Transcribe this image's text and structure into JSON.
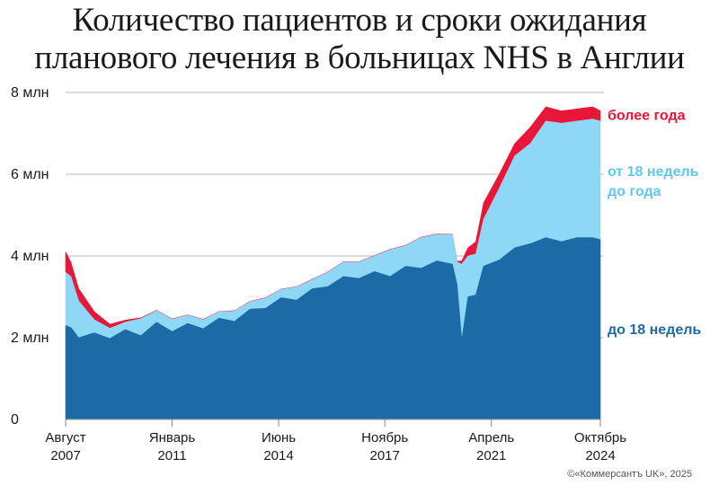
{
  "title_line1": "Количество пациентов и сроки ожидания",
  "title_line2": "планового лечения в больницах NHS в Англии",
  "credit": "©«Коммерсантъ UK», 2025",
  "chart_data": {
    "type": "area",
    "stacked": true,
    "ylim": [
      0,
      8
    ],
    "yticks": [
      {
        "value": 0,
        "label": "0"
      },
      {
        "value": 2,
        "label": "2 млн"
      },
      {
        "value": 4,
        "label": "4 млн"
      },
      {
        "value": 6,
        "label": "6 млн"
      },
      {
        "value": 8,
        "label": "8 млн"
      }
    ],
    "xlim": [
      2007.58,
      2024.75
    ],
    "xticks": [
      {
        "value": 2007.58,
        "line1": "Август",
        "line2": "2007"
      },
      {
        "value": 2011.0,
        "line1": "Январь",
        "line2": "2011"
      },
      {
        "value": 2014.42,
        "line1": "Июнь",
        "line2": "2014"
      },
      {
        "value": 2017.83,
        "line1": "Ноябрь",
        "line2": "2017"
      },
      {
        "value": 2021.25,
        "line1": "Апрель",
        "line2": "2021"
      },
      {
        "value": 2024.75,
        "line1": "Октябрь",
        "line2": "2024"
      }
    ],
    "grid": true,
    "legend": "right, inline labels",
    "series": [
      {
        "name": "до 18 недель",
        "color": "#1c6aa6",
        "label_lines": [
          "до 18 недель"
        ],
        "points": [
          [
            2007.58,
            2.3
          ],
          [
            2007.75,
            2.25
          ],
          [
            2008.0,
            2.0
          ],
          [
            2008.5,
            2.12
          ],
          [
            2009.0,
            1.98
          ],
          [
            2009.5,
            2.2
          ],
          [
            2010.0,
            2.05
          ],
          [
            2010.5,
            2.38
          ],
          [
            2011.0,
            2.15
          ],
          [
            2011.5,
            2.35
          ],
          [
            2012.0,
            2.22
          ],
          [
            2012.5,
            2.48
          ],
          [
            2013.0,
            2.4
          ],
          [
            2013.5,
            2.7
          ],
          [
            2014.0,
            2.72
          ],
          [
            2014.5,
            2.98
          ],
          [
            2015.0,
            2.92
          ],
          [
            2015.5,
            3.2
          ],
          [
            2016.0,
            3.25
          ],
          [
            2016.5,
            3.5
          ],
          [
            2017.0,
            3.45
          ],
          [
            2017.5,
            3.62
          ],
          [
            2018.0,
            3.5
          ],
          [
            2018.5,
            3.75
          ],
          [
            2019.0,
            3.7
          ],
          [
            2019.5,
            3.88
          ],
          [
            2020.0,
            3.8
          ],
          [
            2020.15,
            3.3
          ],
          [
            2020.3,
            1.95
          ],
          [
            2020.5,
            3.0
          ],
          [
            2020.75,
            3.05
          ],
          [
            2021.0,
            3.75
          ],
          [
            2021.5,
            3.9
          ],
          [
            2022.0,
            4.2
          ],
          [
            2022.5,
            4.3
          ],
          [
            2023.0,
            4.45
          ],
          [
            2023.5,
            4.35
          ],
          [
            2024.0,
            4.45
          ],
          [
            2024.5,
            4.45
          ],
          [
            2024.75,
            4.4
          ]
        ]
      },
      {
        "name": "от 18 недель до года",
        "color": "#8ed8f6",
        "label_lines": [
          "от 18 недель",
          "до года"
        ],
        "points": [
          [
            2007.58,
            1.3
          ],
          [
            2007.75,
            1.25
          ],
          [
            2008.0,
            0.9
          ],
          [
            2008.5,
            0.32
          ],
          [
            2009.0,
            0.25
          ],
          [
            2009.5,
            0.18
          ],
          [
            2010.0,
            0.42
          ],
          [
            2010.5,
            0.28
          ],
          [
            2011.0,
            0.3
          ],
          [
            2011.5,
            0.2
          ],
          [
            2012.0,
            0.22
          ],
          [
            2012.5,
            0.15
          ],
          [
            2013.0,
            0.25
          ],
          [
            2013.5,
            0.18
          ],
          [
            2014.0,
            0.25
          ],
          [
            2014.5,
            0.2
          ],
          [
            2015.0,
            0.32
          ],
          [
            2015.5,
            0.22
          ],
          [
            2016.0,
            0.35
          ],
          [
            2016.5,
            0.35
          ],
          [
            2017.0,
            0.4
          ],
          [
            2017.5,
            0.38
          ],
          [
            2018.0,
            0.65
          ],
          [
            2018.5,
            0.5
          ],
          [
            2019.0,
            0.75
          ],
          [
            2019.5,
            0.65
          ],
          [
            2020.0,
            0.72
          ],
          [
            2020.15,
            0.55
          ],
          [
            2020.3,
            1.85
          ],
          [
            2020.5,
            1.0
          ],
          [
            2020.75,
            1.0
          ],
          [
            2021.0,
            1.15
          ],
          [
            2021.5,
            1.75
          ],
          [
            2022.0,
            2.25
          ],
          [
            2022.5,
            2.45
          ],
          [
            2023.0,
            2.85
          ],
          [
            2023.5,
            2.9
          ],
          [
            2024.0,
            2.85
          ],
          [
            2024.5,
            2.9
          ],
          [
            2024.75,
            2.9
          ]
        ]
      },
      {
        "name": "более года",
        "color": "#e8173a",
        "label_lines": [
          "более года"
        ],
        "points": [
          [
            2007.58,
            0.5
          ],
          [
            2007.75,
            0.35
          ],
          [
            2008.0,
            0.3
          ],
          [
            2008.5,
            0.2
          ],
          [
            2009.0,
            0.1
          ],
          [
            2009.5,
            0.05
          ],
          [
            2010.0,
            0.02
          ],
          [
            2010.5,
            0.01
          ],
          [
            2011.0,
            0.01
          ],
          [
            2011.5,
            0.01
          ],
          [
            2012.0,
            0.01
          ],
          [
            2012.5,
            0.01
          ],
          [
            2013.0,
            0.01
          ],
          [
            2013.5,
            0.01
          ],
          [
            2014.0,
            0.01
          ],
          [
            2014.5,
            0.01
          ],
          [
            2015.0,
            0.01
          ],
          [
            2015.5,
            0.01
          ],
          [
            2016.0,
            0.01
          ],
          [
            2016.5,
            0.01
          ],
          [
            2017.0,
            0.01
          ],
          [
            2017.5,
            0.01
          ],
          [
            2018.0,
            0.01
          ],
          [
            2018.5,
            0.01
          ],
          [
            2019.0,
            0.01
          ],
          [
            2019.5,
            0.01
          ],
          [
            2020.0,
            0.01
          ],
          [
            2020.15,
            0.02
          ],
          [
            2020.3,
            0.08
          ],
          [
            2020.5,
            0.2
          ],
          [
            2020.75,
            0.3
          ],
          [
            2021.0,
            0.4
          ],
          [
            2021.5,
            0.35
          ],
          [
            2022.0,
            0.3
          ],
          [
            2022.5,
            0.4
          ],
          [
            2023.0,
            0.35
          ],
          [
            2023.5,
            0.3
          ],
          [
            2024.0,
            0.3
          ],
          [
            2024.5,
            0.3
          ],
          [
            2024.75,
            0.25
          ]
        ]
      }
    ]
  }
}
